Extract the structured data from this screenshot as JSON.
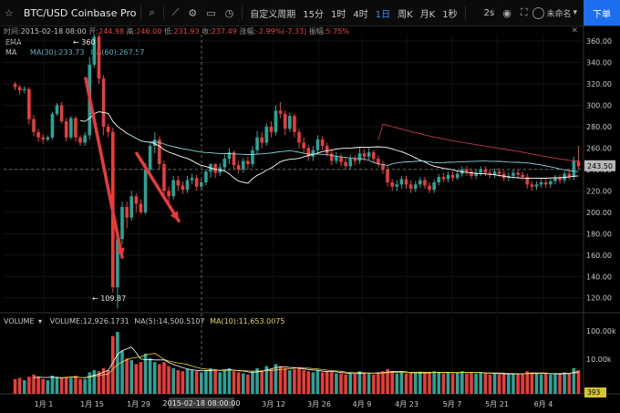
{
  "toolbar": {
    "symbol": "BTC/USD Coinbase Pro",
    "custom_period": "自定义周期",
    "periods": [
      "15分",
      "1时",
      "4时",
      "1日",
      "周K",
      "月K",
      "1秒"
    ],
    "active_period": "1日",
    "refresh": "2s",
    "user": "未命名",
    "order_button": "下单",
    "icons": [
      "star-icon",
      "search-icon",
      "indicator-icon",
      "settings-icon",
      "layout-icon",
      "clock-icon",
      "camera-icon",
      "fullscreen-icon"
    ]
  },
  "ohlc_bar": {
    "time_label": "时间:",
    "time": "2015-02-18 08:00",
    "open_label": "开:",
    "open": "244.98",
    "high_label": "高:",
    "high": "246.00",
    "low_label": "低:",
    "low": "231.93",
    "close_label": "收:",
    "close": "237.49",
    "change_label": "涨幅:",
    "change": "-2.99%(-7.33)",
    "amplitude_label": "振幅:",
    "amplitude": "5.75%"
  },
  "legend": {
    "ema": "EMA",
    "ma": "MA",
    "ma30": "MA(30):233.73",
    "ma60": "MA(60):267.57",
    "volume": "VOLUME",
    "vol_value": "VOLUME:12,926.1731",
    "vol_ma5": "MA(5):14,500.5107",
    "vol_ma10": "MA(10):11,653.0075"
  },
  "chart_data": {
    "type": "candlestick",
    "colors": {
      "up": "#26a69a",
      "down": "#ef3b36",
      "ma30": "#ffffff",
      "ma60": "#8fd3d6",
      "ema": "#c0394b",
      "last_price_tag": "#b8b8b8",
      "arrow": "#e83a3a"
    },
    "y_ticks": [
      "360.00",
      "340.00",
      "320.00",
      "300.00",
      "280.00",
      "260.00",
      "240.00",
      "220.00",
      "200.00",
      "180.00",
      "160.00",
      "140.00",
      "120.00"
    ],
    "ylim": [
      107,
      366
    ],
    "volume_ticks": [
      "100.00k",
      "10.00k"
    ],
    "x_ticks": [
      "1月 1",
      "1月 15",
      "1月 29",
      "3月 12",
      "3月 26",
      "4月 9",
      "4月 23",
      "5月 7",
      "5月 21",
      "6月 4"
    ],
    "crosshair_date": "2015-02-18 08:00:00",
    "last_price": "243.50",
    "last_volume": "393",
    "annotations": {
      "high": "← 360",
      "low": "← 109.87"
    },
    "crosshair_price": 240,
    "candles": [
      [
        320,
        317,
        322,
        314,
        10
      ],
      [
        317,
        314,
        319,
        310,
        11
      ],
      [
        314,
        315,
        318,
        311,
        9
      ],
      [
        315,
        287,
        317,
        282,
        12
      ],
      [
        287,
        275,
        291,
        271,
        14
      ],
      [
        275,
        270,
        278,
        266,
        12
      ],
      [
        270,
        268,
        273,
        264,
        10
      ],
      [
        268,
        270,
        272,
        266,
        9
      ],
      [
        270,
        292,
        294,
        268,
        13
      ],
      [
        292,
        300,
        302,
        290,
        12
      ],
      [
        300,
        285,
        303,
        283,
        11
      ],
      [
        285,
        270,
        288,
        266,
        12
      ],
      [
        270,
        288,
        290,
        268,
        11
      ],
      [
        288,
        270,
        290,
        266,
        13
      ],
      [
        270,
        265,
        272,
        262,
        10
      ],
      [
        265,
        272,
        275,
        262,
        10
      ],
      [
        272,
        338,
        345,
        268,
        16
      ],
      [
        338,
        364,
        366,
        335,
        18
      ],
      [
        364,
        325,
        366,
        320,
        17
      ],
      [
        325,
        280,
        328,
        272,
        20
      ],
      [
        280,
        275,
        283,
        270,
        18
      ],
      [
        275,
        130,
        279,
        125,
        55
      ],
      [
        130,
        175,
        180,
        110,
        60
      ],
      [
        175,
        205,
        210,
        170,
        38
      ],
      [
        205,
        195,
        210,
        185,
        30
      ],
      [
        195,
        215,
        220,
        192,
        28
      ],
      [
        215,
        208,
        218,
        200,
        24
      ],
      [
        208,
        200,
        212,
        198,
        26
      ],
      [
        200,
        240,
        246,
        198,
        35
      ],
      [
        240,
        262,
        266,
        235,
        30
      ],
      [
        262,
        268,
        275,
        255,
        26
      ],
      [
        268,
        245,
        271,
        240,
        24
      ],
      [
        245,
        220,
        248,
        215,
        26
      ],
      [
        220,
        215,
        224,
        208,
        22
      ],
      [
        215,
        230,
        234,
        212,
        20
      ],
      [
        230,
        225,
        234,
        220,
        18
      ],
      [
        225,
        221,
        229,
        217,
        17
      ],
      [
        221,
        230,
        234,
        218,
        19
      ],
      [
        230,
        232,
        236,
        226,
        18
      ],
      [
        232,
        224,
        235,
        220,
        17
      ],
      [
        224,
        228,
        231,
        221,
        16
      ],
      [
        228,
        238,
        240,
        225,
        18
      ],
      [
        238,
        245,
        246,
        232,
        20
      ],
      [
        245,
        237,
        246,
        232,
        19
      ],
      [
        237,
        242,
        246,
        234,
        16
      ],
      [
        242,
        250,
        254,
        238,
        18
      ],
      [
        250,
        256,
        260,
        245,
        20
      ],
      [
        256,
        244,
        258,
        240,
        17
      ],
      [
        244,
        240,
        248,
        236,
        16
      ],
      [
        240,
        248,
        251,
        237,
        15
      ],
      [
        248,
        245,
        252,
        240,
        14
      ],
      [
        245,
        258,
        262,
        242,
        17
      ],
      [
        258,
        270,
        276,
        255,
        20
      ],
      [
        270,
        265,
        275,
        260,
        18
      ],
      [
        265,
        280,
        283,
        262,
        22
      ],
      [
        280,
        275,
        285,
        270,
        19
      ],
      [
        275,
        295,
        300,
        272,
        24
      ],
      [
        295,
        292,
        303,
        288,
        22
      ],
      [
        292,
        278,
        295,
        272,
        20
      ],
      [
        278,
        290,
        293,
        275,
        18
      ],
      [
        290,
        275,
        292,
        270,
        19
      ],
      [
        275,
        265,
        278,
        260,
        21
      ],
      [
        265,
        260,
        270,
        256,
        18
      ],
      [
        260,
        252,
        263,
        248,
        17
      ],
      [
        252,
        258,
        262,
        248,
        16
      ],
      [
        258,
        268,
        272,
        255,
        18
      ],
      [
        268,
        262,
        271,
        258,
        16
      ],
      [
        262,
        255,
        265,
        252,
        17
      ],
      [
        255,
        248,
        259,
        244,
        16
      ],
      [
        248,
        252,
        256,
        245,
        15
      ],
      [
        252,
        247,
        255,
        243,
        15
      ],
      [
        247,
        243,
        251,
        240,
        14
      ],
      [
        243,
        250,
        254,
        240,
        15
      ],
      [
        250,
        248,
        253,
        244,
        14
      ],
      [
        248,
        255,
        260,
        245,
        17
      ],
      [
        255,
        252,
        259,
        248,
        16
      ],
      [
        252,
        256,
        260,
        249,
        15
      ],
      [
        256,
        250,
        258,
        246,
        14
      ],
      [
        250,
        245,
        253,
        242,
        16
      ],
      [
        245,
        240,
        248,
        236,
        17
      ],
      [
        240,
        228,
        243,
        224,
        19
      ],
      [
        228,
        224,
        231,
        220,
        17
      ],
      [
        224,
        226,
        230,
        220,
        15
      ],
      [
        226,
        231,
        234,
        222,
        16
      ],
      [
        231,
        226,
        234,
        222,
        15
      ],
      [
        226,
        222,
        230,
        218,
        16
      ],
      [
        222,
        226,
        229,
        219,
        15
      ],
      [
        226,
        230,
        233,
        223,
        16
      ],
      [
        230,
        225,
        233,
        222,
        15
      ],
      [
        225,
        221,
        228,
        218,
        16
      ],
      [
        221,
        228,
        231,
        218,
        17
      ],
      [
        228,
        233,
        236,
        225,
        16
      ],
      [
        233,
        231,
        237,
        228,
        15
      ],
      [
        231,
        235,
        238,
        228,
        16
      ],
      [
        235,
        232,
        238,
        229,
        15
      ],
      [
        232,
        236,
        239,
        230,
        16
      ],
      [
        236,
        240,
        243,
        233,
        17
      ],
      [
        240,
        238,
        243,
        234,
        15
      ],
      [
        238,
        234,
        241,
        231,
        16
      ],
      [
        234,
        237,
        240,
        231,
        15
      ],
      [
        237,
        240,
        243,
        234,
        16
      ],
      [
        240,
        237,
        243,
        234,
        15
      ],
      [
        237,
        235,
        240,
        232,
        14
      ],
      [
        235,
        238,
        241,
        232,
        15
      ],
      [
        238,
        236,
        241,
        233,
        14
      ],
      [
        236,
        232,
        239,
        229,
        15
      ],
      [
        232,
        234,
        237,
        229,
        14
      ],
      [
        234,
        237,
        240,
        231,
        15
      ],
      [
        237,
        235,
        240,
        232,
        14
      ],
      [
        235,
        233,
        238,
        230,
        15
      ],
      [
        233,
        226,
        236,
        222,
        17
      ],
      [
        226,
        224,
        229,
        220,
        16
      ],
      [
        224,
        226,
        229,
        221,
        15
      ],
      [
        226,
        228,
        231,
        223,
        14
      ],
      [
        228,
        226,
        231,
        223,
        15
      ],
      [
        226,
        229,
        232,
        223,
        14
      ],
      [
        229,
        232,
        235,
        226,
        15
      ],
      [
        232,
        230,
        235,
        227,
        14
      ],
      [
        230,
        236,
        239,
        227,
        16
      ],
      [
        236,
        233,
        239,
        230,
        15
      ],
      [
        233,
        248,
        252,
        230,
        20
      ],
      [
        248,
        243,
        262,
        240,
        18
      ]
    ],
    "arrows": [
      [
        150,
        212,
        172,
        325
      ],
      [
        172,
        232,
        180,
        255
      ]
    ]
  }
}
